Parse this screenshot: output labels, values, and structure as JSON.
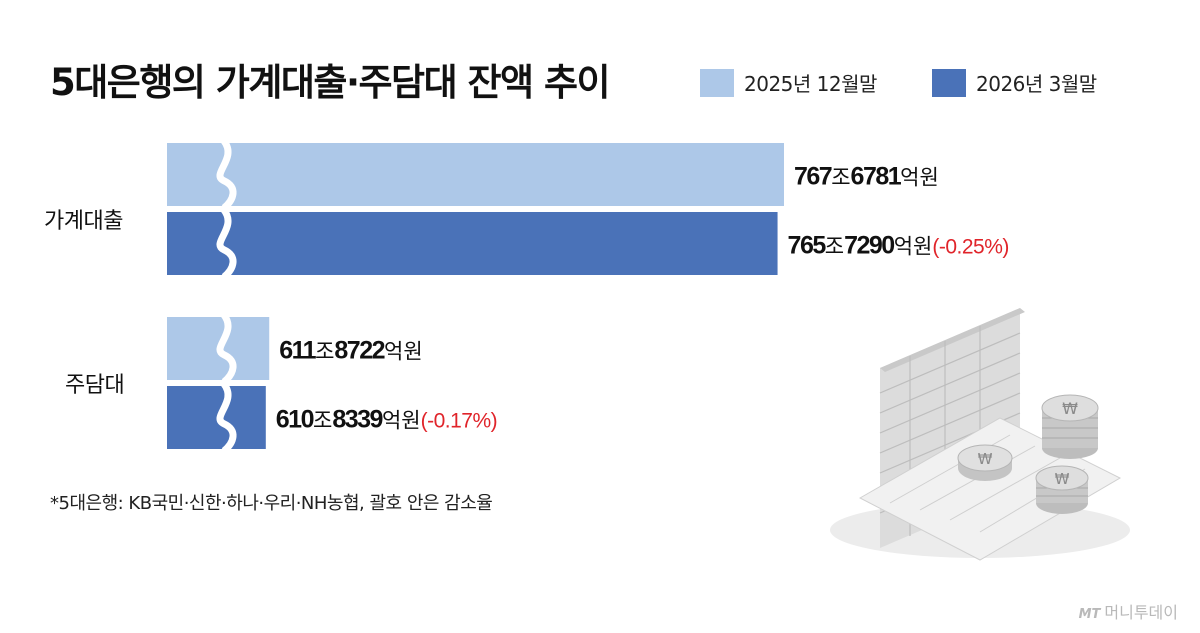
{
  "title": "5대은행의 가계대출·주담대 잔액 추이",
  "colors": {
    "light": "#adc8e8",
    "dark": "#4a72b8",
    "change": "#e0242a"
  },
  "legend": [
    {
      "label": "2025년 12월말",
      "color": "#adc8e8"
    },
    {
      "label": "2026년 3월말",
      "color": "#4a72b8"
    }
  ],
  "footnote": "*5대은행: KB국민·신한·하나·우리·NH농협, 괄호 안은 감소율",
  "brand": {
    "mark": "MT",
    "name": "머니투데이"
  },
  "chart_data": {
    "type": "bar",
    "orientation": "horizontal",
    "axis_break": true,
    "unit": "억원",
    "categories": [
      "가계대출",
      "주담대"
    ],
    "series": [
      {
        "name": "2025년 12월말",
        "values": [
          7676781,
          6118722
        ],
        "labels": [
          {
            "jo": "767",
            "eok": "6781",
            "change": ""
          },
          {
            "jo": "611",
            "eok": "8722",
            "change": ""
          }
        ]
      },
      {
        "name": "2026년 3월말",
        "values": [
          7657290,
          6108339
        ],
        "labels": [
          {
            "jo": "765",
            "eok": "7290",
            "change": "(-0.25%)"
          },
          {
            "jo": "610",
            "eok": "8339",
            "change": "(-0.17%)"
          }
        ]
      }
    ],
    "value_suffix": {
      "jo": "조",
      "eok": "억원"
    }
  }
}
